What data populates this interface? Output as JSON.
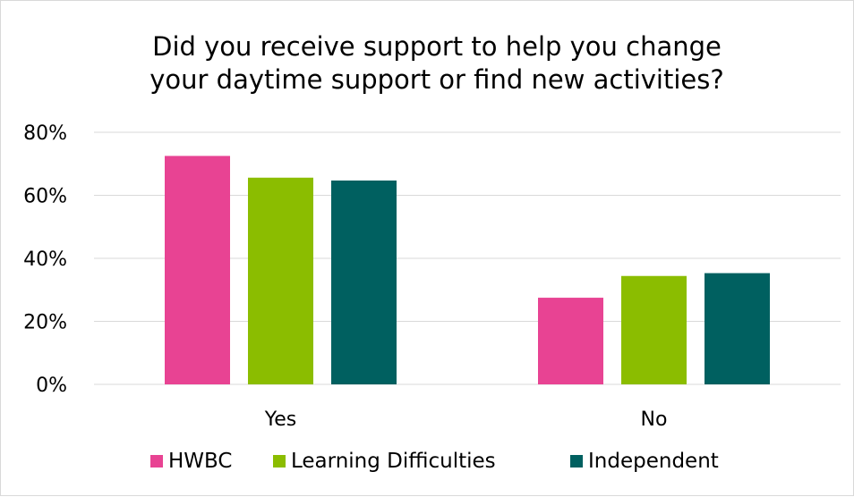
{
  "chart_data": {
    "type": "bar",
    "title": "Did you receive support to help you change your daytime support or find new activities?",
    "title_lines": [
      "Did you receive support to help you change",
      "your daytime support or find new activities?"
    ],
    "categories": [
      "Yes",
      "No"
    ],
    "series": [
      {
        "name": "HWBC",
        "color": "#e84393",
        "values": [
          72.5,
          27.5
        ]
      },
      {
        "name": "Learning Difficulties",
        "color": "#8bbd00",
        "values": [
          65.6,
          34.4
        ]
      },
      {
        "name": "Independent",
        "color": "#006060",
        "values": [
          64.7,
          35.3
        ]
      }
    ],
    "ylim": [
      0,
      80
    ],
    "y_ticks": [
      {
        "value": 0,
        "label": "0%"
      },
      {
        "value": 20,
        "label": "20%"
      },
      {
        "value": 40,
        "label": "40%"
      },
      {
        "value": 60,
        "label": "60%"
      },
      {
        "value": 80,
        "label": "80%"
      }
    ],
    "xlabel": "",
    "ylabel": "",
    "grid": true,
    "legend_position": "bottom"
  }
}
